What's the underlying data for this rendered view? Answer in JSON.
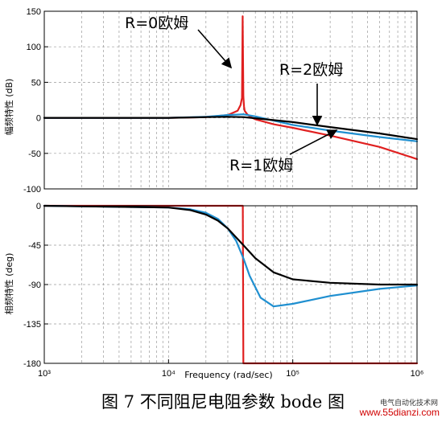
{
  "chart_data": [
    {
      "type": "line",
      "panel": "magnitude",
      "ylabel": "幅频特性 (dB)",
      "xscale": "log",
      "xlim": [
        1000,
        1000000
      ],
      "ylim": [
        -100,
        150
      ],
      "yticks": [
        150,
        100,
        50,
        0,
        -50,
        -100
      ],
      "grid": true,
      "series": [
        {
          "color": "#e02020",
          "x": [
            1000,
            3000,
            10000,
            20000,
            30000,
            36000,
            38000,
            39000,
            39500,
            40000,
            40500,
            41000,
            43000,
            46000,
            50000,
            70000,
            100000,
            200000,
            500000,
            1000000
          ],
          "y": [
            0,
            0,
            0,
            1,
            4,
            10,
            18,
            28,
            143,
            30,
            16,
            10,
            5,
            1,
            -2,
            -9,
            -14,
            -25,
            -41,
            -58
          ]
        },
        {
          "color": "#1f8fd0",
          "x": [
            1000,
            10000,
            20000,
            30000,
            40000,
            50000,
            70000,
            100000,
            200000,
            500000,
            1000000
          ],
          "y": [
            0,
            0,
            1.5,
            4,
            5,
            2,
            -4,
            -10,
            -18,
            -27,
            -33
          ]
        },
        {
          "color": "#000000",
          "x": [
            1000,
            10000,
            20000,
            30000,
            40000,
            60000,
            100000,
            200000,
            500000,
            1000000
          ],
          "y": [
            0,
            0,
            1,
            1.5,
            1,
            -2,
            -6,
            -13,
            -22,
            -30
          ]
        }
      ],
      "annotations": [
        {
          "text": "R=0欧姆"
        },
        {
          "text": "R=2欧姆"
        },
        {
          "text": "R=1欧姆"
        }
      ]
    },
    {
      "type": "line",
      "panel": "phase",
      "xlabel": "Frequency  (rad/sec)",
      "ylabel": "相频特性 (deg)",
      "xscale": "log",
      "xlim": [
        1000,
        1000000
      ],
      "ylim": [
        -180,
        0
      ],
      "yticks": [
        0,
        -45,
        -90,
        -135,
        -180
      ],
      "xtick_labels": [
        "10^3",
        "10^4",
        "10^5",
        "10^6"
      ],
      "grid": true,
      "series": [
        {
          "color": "#e02020",
          "x": [
            1000,
            39000,
            39600,
            40000,
            1000000
          ],
          "y": [
            0,
            0,
            0,
            -180,
            -180
          ]
        },
        {
          "color": "#1f8fd0",
          "x": [
            1000,
            10000,
            15000,
            20000,
            25000,
            30000,
            35000,
            40000,
            45000,
            55000,
            70000,
            100000,
            200000,
            500000,
            1000000
          ],
          "y": [
            0,
            -2,
            -4,
            -8,
            -15,
            -26,
            -40,
            -60,
            -80,
            -105,
            -115,
            -112,
            -103,
            -95,
            -91
          ]
        },
        {
          "color": "#000000",
          "x": [
            1000,
            10000,
            15000,
            20000,
            25000,
            30000,
            40000,
            50000,
            70000,
            100000,
            200000,
            500000,
            1000000
          ],
          "y": [
            0,
            -2,
            -5,
            -10,
            -17,
            -26,
            -45,
            -60,
            -76,
            -84,
            -88,
            -90,
            -90
          ]
        }
      ]
    }
  ],
  "caption": "图 7  不同阻尼电阻参数 bode 图",
  "watermark": {
    "site": "电气自动化技术网",
    "url": "www.55dianzi.com"
  }
}
